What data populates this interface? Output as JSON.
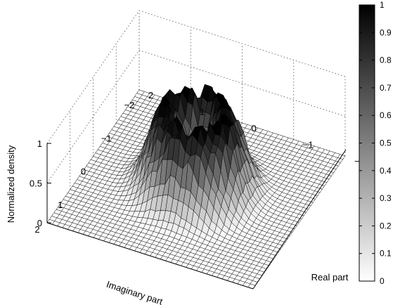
{
  "chart_data": {
    "type": "surface",
    "xlabel": "Real part",
    "ylabel": "Imaginary part",
    "zlabel": "Normalized density",
    "x_range": [
      -2,
      2
    ],
    "y_range": [
      -2,
      2
    ],
    "z_range": [
      0,
      1
    ],
    "x_ticks": [
      "2",
      "1",
      "0",
      "−1",
      "−2"
    ],
    "y_ticks": [
      "2",
      "1",
      "0",
      "−1",
      "−2"
    ],
    "z_ticks": [
      "1",
      "0.5",
      "0"
    ],
    "grid": true,
    "colormap": "gray (white = 0, black = 1)",
    "colorbar": {
      "ticks": [
        "1",
        "0.9",
        "0.8",
        "0.7",
        "0.6",
        "0.5",
        "0.4",
        "0.3",
        "0.2",
        "0.1",
        "0"
      ],
      "range": [
        0,
        1
      ]
    },
    "surface": {
      "shape": "ring (annular crater) with central dip",
      "grid_size": [
        41,
        41
      ],
      "ring_radius": 0.55,
      "ring_width": 0.42,
      "peak_value": 1.0,
      "center_value": 0.55,
      "noise": "random spikes, amplitude ~0.12"
    }
  }
}
